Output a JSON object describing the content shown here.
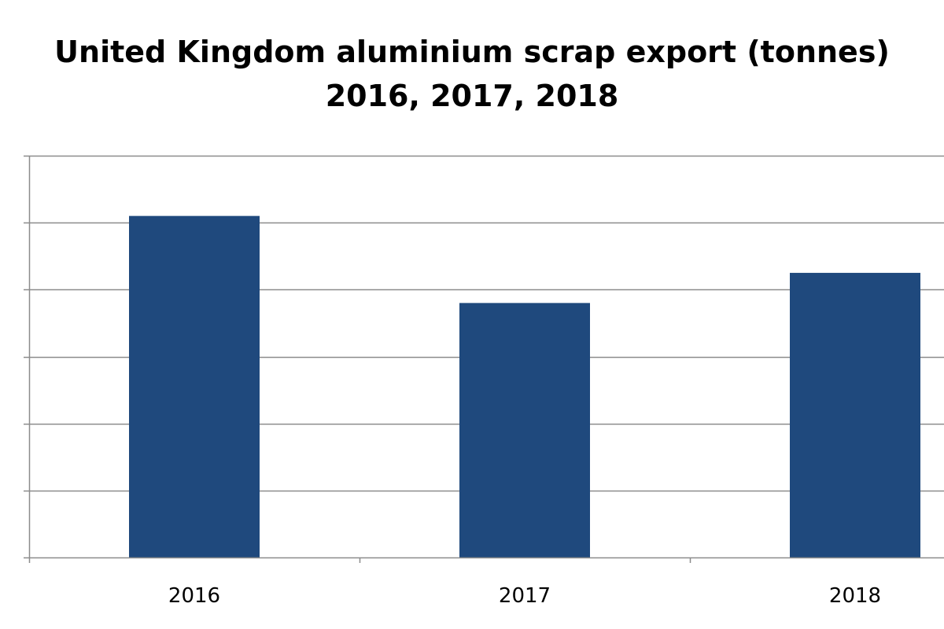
{
  "chart_data": {
    "type": "bar",
    "title_lines": [
      "United Kingdom aluminium scrap export (tonnes)",
      "2016, 2017, 2018"
    ],
    "categories": [
      "2016",
      "2017",
      "2018"
    ],
    "series": [
      {
        "values": [
          510,
          380,
          425
        ]
      }
    ],
    "ylim": [
      0,
      600
    ],
    "ytick_step": 100,
    "ytick_labels_visible": false,
    "grid": true,
    "legend": "none",
    "colors": {
      "bar": "#1f497d",
      "grid": "#8c8c8c",
      "axis": "#8c8c8c",
      "text": "#000000"
    }
  }
}
